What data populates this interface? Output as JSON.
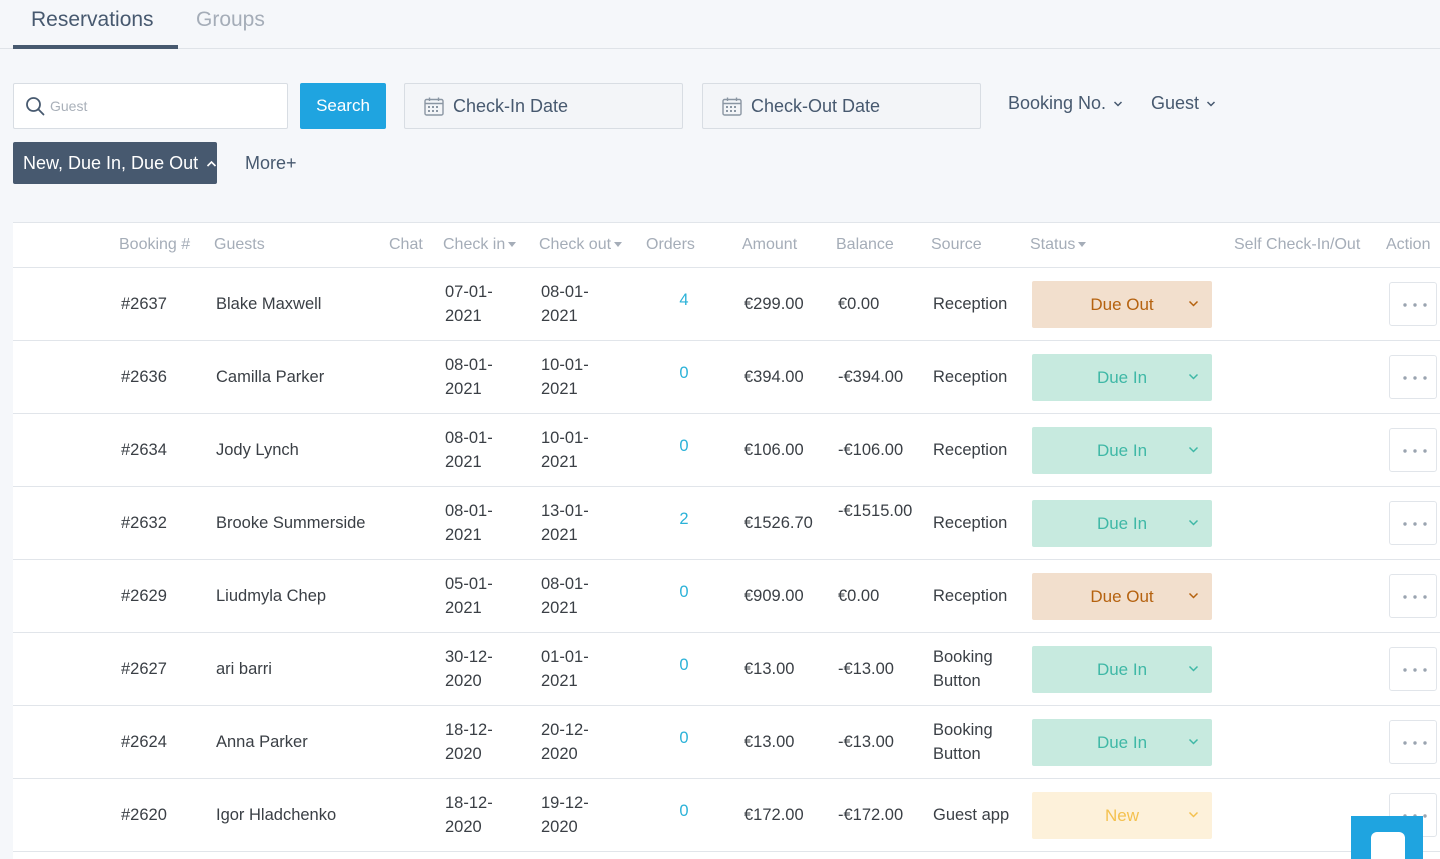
{
  "tabs": [
    {
      "label": "Reservations",
      "active": true
    },
    {
      "label": "Groups",
      "active": false
    }
  ],
  "filters": {
    "search_placeholder": "Guest",
    "search_value": "",
    "search_button": "Search",
    "checkin_label": "Check-In Date",
    "checkout_label": "Check-Out Date",
    "booking_dropdown": "Booking No.",
    "guest_dropdown": "Guest",
    "status_filter": "New, Due In, Due Out",
    "more_link": "More+"
  },
  "table": {
    "headers": {
      "booking": "Booking #",
      "guests": "Guests",
      "chat": "Chat",
      "checkin": "Check in",
      "checkout": "Check out",
      "orders": "Orders",
      "amount": "Amount",
      "balance": "Balance",
      "source": "Source",
      "status": "Status",
      "self_check": "Self Check-In/Out",
      "action": "Action"
    },
    "rows": [
      {
        "booking": "#2637",
        "guest": "Blake Maxwell",
        "checkin": "07-01-2021",
        "checkout": "08-01-2021",
        "orders": "4",
        "amount": "€299.00",
        "balance": "€0.00",
        "source": "Reception",
        "status": "Due Out",
        "status_kind": "due-out"
      },
      {
        "booking": "#2636",
        "guest": "Camilla Parker",
        "checkin": "08-01-2021",
        "checkout": "10-01-2021",
        "orders": "0",
        "amount": "€394.00",
        "balance": "-€394.00",
        "source": "Reception",
        "status": "Due In",
        "status_kind": "due-in"
      },
      {
        "booking": "#2634",
        "guest": "Jody Lynch",
        "checkin": "08-01-2021",
        "checkout": "10-01-2021",
        "orders": "0",
        "amount": "€106.00",
        "balance": "-€106.00",
        "source": "Reception",
        "status": "Due In",
        "status_kind": "due-in"
      },
      {
        "booking": "#2632",
        "guest": "Brooke Summerside",
        "checkin": "08-01-2021",
        "checkout": "13-01-2021",
        "orders": "2",
        "amount": "€1526.70",
        "balance": "-€1515.00",
        "source": "Reception",
        "status": "Due In",
        "status_kind": "due-in"
      },
      {
        "booking": "#2629",
        "guest": "Liudmyla Chep",
        "checkin": "05-01-2021",
        "checkout": "08-01-2021",
        "orders": "0",
        "amount": "€909.00",
        "balance": "€0.00",
        "source": "Reception",
        "status": "Due Out",
        "status_kind": "due-out"
      },
      {
        "booking": "#2627",
        "guest": "ari barri",
        "checkin": "30-12-2020",
        "checkout": "01-01-2021",
        "orders": "0",
        "amount": "€13.00",
        "balance": "-€13.00",
        "source": "Booking Button",
        "status": "Due In",
        "status_kind": "due-in"
      },
      {
        "booking": "#2624",
        "guest": "Anna Parker",
        "checkin": "18-12-2020",
        "checkout": "20-12-2020",
        "orders": "0",
        "amount": "€13.00",
        "balance": "-€13.00",
        "source": "Booking Button",
        "status": "Due In",
        "status_kind": "due-in"
      },
      {
        "booking": "#2620",
        "guest": "Igor Hladchenko",
        "checkin": "18-12-2020",
        "checkout": "19-12-2020",
        "orders": "0",
        "amount": "€172.00",
        "balance": "-€172.00",
        "source": "Guest app",
        "status": "New",
        "status_kind": "new"
      }
    ]
  },
  "status_colors": {
    "due-out": {
      "bg": "#f2dfcd",
      "fg": "#b5620f"
    },
    "due-in": {
      "bg": "#c7eadf",
      "fg": "#3fb8a6"
    },
    "new": {
      "bg": "#fdf1da",
      "fg": "#f4c14f"
    }
  },
  "icons": {
    "search": "search-icon",
    "calendar": "calendar-icon",
    "chevron": "chevron-down-icon",
    "more": "more-horizontal-icon",
    "chat": "chat-bubble-icon"
  }
}
